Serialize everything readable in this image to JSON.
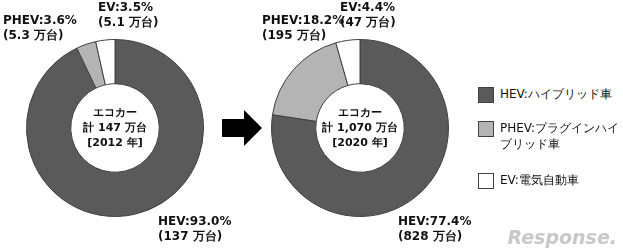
{
  "chart_data": [
    {
      "type": "doughnut",
      "center_text": [
        "エコカー",
        "計 147 万台",
        "[2012 年]"
      ],
      "categories": [
        "HEV",
        "PHEV",
        "EV"
      ],
      "values": [
        93.0,
        3.6,
        3.5
      ],
      "value_labels": [
        "HEV:93.0%",
        "PHEV:3.6%",
        "EV:3.5%"
      ],
      "units": [
        137,
        5.3,
        5.1
      ],
      "unit_labels": [
        "(137 万台)",
        "(5.3 万台)",
        "(5.1 万台)"
      ],
      "colors": [
        "#5a5a5a",
        "#b4b4b4",
        "#ffffff"
      ],
      "data_labels": true
    },
    {
      "type": "doughnut",
      "center_text": [
        "エコカー",
        "計 1,070 万台",
        "[2020 年]"
      ],
      "categories": [
        "HEV",
        "PHEV",
        "EV"
      ],
      "values": [
        77.4,
        18.2,
        4.4
      ],
      "value_labels": [
        "HEV:77.4%",
        "PHEV:18.2%",
        "EV:4.4%"
      ],
      "units": [
        828,
        195,
        47
      ],
      "unit_labels": [
        "(828 万台)",
        "(195 万台)",
        "(47 万台)"
      ],
      "colors": [
        "#5a5a5a",
        "#b4b4b4",
        "#ffffff"
      ],
      "data_labels": true
    }
  ],
  "legend": "right",
  "legend_labels": [
    "HEV:ハイブリッド車",
    "PHEV:プラグインハイブリッド車",
    "EV:電気自動車"
  ],
  "watermark": "Response."
}
